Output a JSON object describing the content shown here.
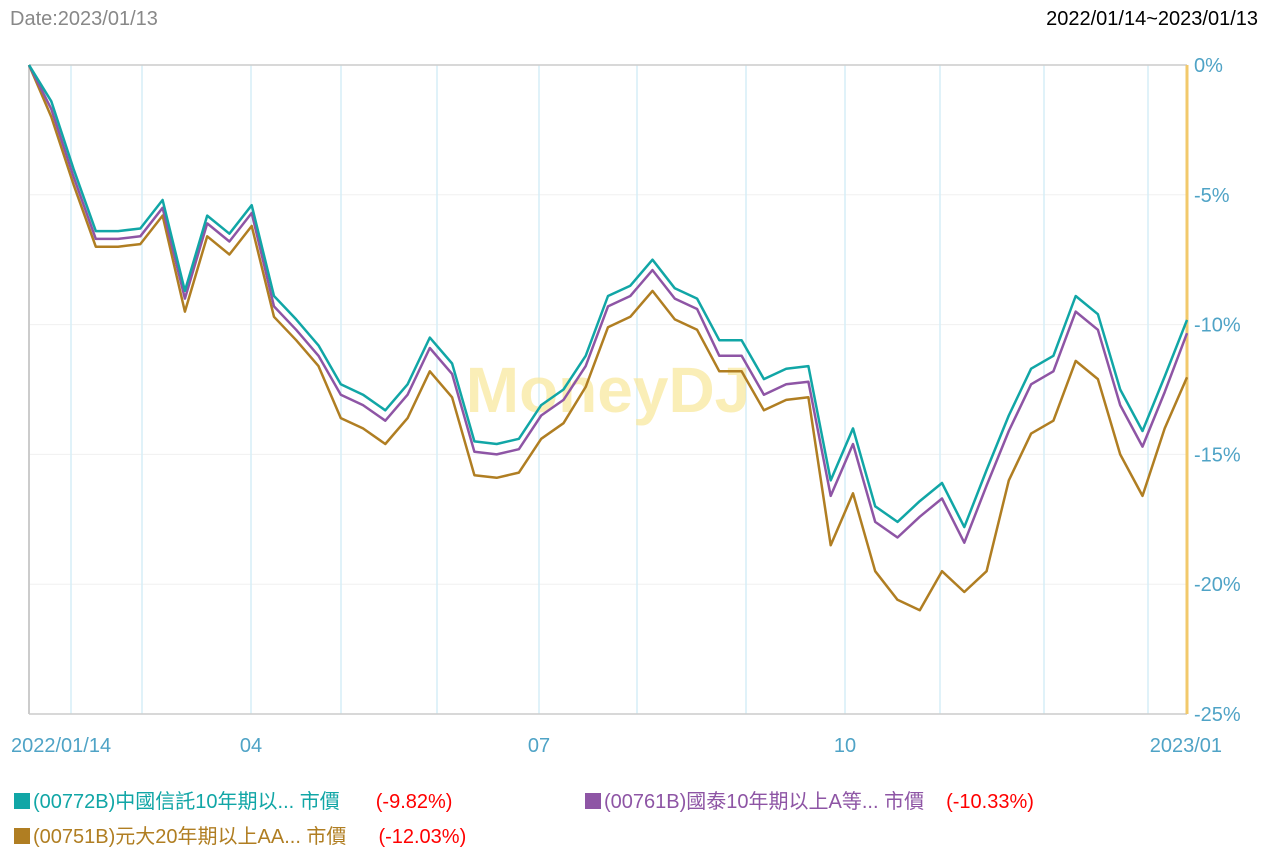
{
  "header": {
    "date_label": "Date:2023/01/13",
    "range_label": "2022/01/14~2023/01/13"
  },
  "watermark": "MoneyDJ",
  "chart_data": {
    "type": "line",
    "x": [
      "2022/01/14",
      "2022/01/21",
      "2022/01/28",
      "2022/02/04",
      "2022/02/11",
      "2022/02/18",
      "2022/02/25",
      "2022/03/04",
      "2022/03/11",
      "2022/03/18",
      "2022/03/25",
      "2022/04/01",
      "2022/04/08",
      "2022/04/15",
      "2022/04/22",
      "2022/04/29",
      "2022/05/06",
      "2022/05/13",
      "2022/05/20",
      "2022/05/27",
      "2022/06/03",
      "2022/06/10",
      "2022/06/17",
      "2022/06/24",
      "2022/07/01",
      "2022/07/08",
      "2022/07/15",
      "2022/07/22",
      "2022/07/29",
      "2022/08/05",
      "2022/08/12",
      "2022/08/19",
      "2022/08/26",
      "2022/09/02",
      "2022/09/09",
      "2022/09/16",
      "2022/09/23",
      "2022/09/30",
      "2022/10/07",
      "2022/10/14",
      "2022/10/21",
      "2022/10/28",
      "2022/11/04",
      "2022/11/11",
      "2022/11/18",
      "2022/11/25",
      "2022/12/02",
      "2022/12/09",
      "2022/12/16",
      "2022/12/23",
      "2022/12/30",
      "2023/01/06",
      "2023/01/13"
    ],
    "xtick_labels": [
      "2022/01/14",
      "04",
      "07",
      "10",
      "2023/01"
    ],
    "ytick_labels": [
      "0%",
      "-5%",
      "-10%",
      "-15%",
      "-20%",
      "-25%"
    ],
    "ylim": [
      -25,
      0
    ],
    "y_axis_side": "right",
    "grid": true,
    "legend_position": "bottom",
    "series": [
      {
        "name": "(00772B)中國信託10年期以... 市價",
        "change": "(-9.82%)",
        "color": "#11a6a6",
        "values": [
          0,
          -1.4,
          -4.0,
          -6.4,
          -6.4,
          -6.3,
          -5.2,
          -8.7,
          -5.8,
          -6.5,
          -5.4,
          -8.9,
          -9.8,
          -10.8,
          -12.3,
          -12.7,
          -13.3,
          -12.3,
          -10.5,
          -11.5,
          -14.5,
          -14.6,
          -14.4,
          -13.1,
          -12.5,
          -11.2,
          -8.9,
          -8.5,
          -7.5,
          -8.6,
          -9.0,
          -10.6,
          -10.6,
          -12.1,
          -11.7,
          -11.6,
          -16.0,
          -14.0,
          -17.0,
          -17.6,
          -16.8,
          -16.1,
          -17.8,
          -15.6,
          -13.5,
          -11.7,
          -11.2,
          -8.9,
          -9.6,
          -12.5,
          -14.1,
          -12.0,
          -9.82
        ]
      },
      {
        "name": "(00761B)國泰10年期以上A等... 市價",
        "change": "(-10.33%)",
        "color": "#8e55a5",
        "values": [
          0,
          -1.7,
          -4.3,
          -6.7,
          -6.7,
          -6.6,
          -5.5,
          -9.0,
          -6.1,
          -6.8,
          -5.7,
          -9.3,
          -10.2,
          -11.2,
          -12.7,
          -13.1,
          -13.7,
          -12.7,
          -10.9,
          -11.9,
          -14.9,
          -15.0,
          -14.8,
          -13.5,
          -12.9,
          -11.6,
          -9.3,
          -8.9,
          -7.9,
          -9.0,
          -9.4,
          -11.2,
          -11.2,
          -12.7,
          -12.3,
          -12.2,
          -16.6,
          -14.6,
          -17.6,
          -18.2,
          -17.4,
          -16.7,
          -18.4,
          -16.2,
          -14.1,
          -12.3,
          -11.8,
          -9.5,
          -10.2,
          -13.1,
          -14.7,
          -12.6,
          -10.33
        ]
      },
      {
        "name": "(00751B)元大20年期以上AA... 市價",
        "change": "(-12.03%)",
        "color": "#b07e22",
        "values": [
          0,
          -2.0,
          -4.6,
          -7.0,
          -7.0,
          -6.9,
          -5.8,
          -9.5,
          -6.6,
          -7.3,
          -6.2,
          -9.7,
          -10.6,
          -11.6,
          -13.6,
          -14.0,
          -14.6,
          -13.6,
          -11.8,
          -12.8,
          -15.8,
          -15.9,
          -15.7,
          -14.4,
          -13.8,
          -12.4,
          -10.1,
          -9.7,
          -8.7,
          -9.8,
          -10.2,
          -11.8,
          -11.8,
          -13.3,
          -12.9,
          -12.8,
          -18.5,
          -16.5,
          -19.5,
          -20.6,
          -21.0,
          -19.5,
          -20.3,
          -19.5,
          -16.0,
          -14.2,
          -13.7,
          -11.4,
          -12.1,
          -15.0,
          -16.6,
          -14.0,
          -12.03
        ]
      }
    ]
  }
}
